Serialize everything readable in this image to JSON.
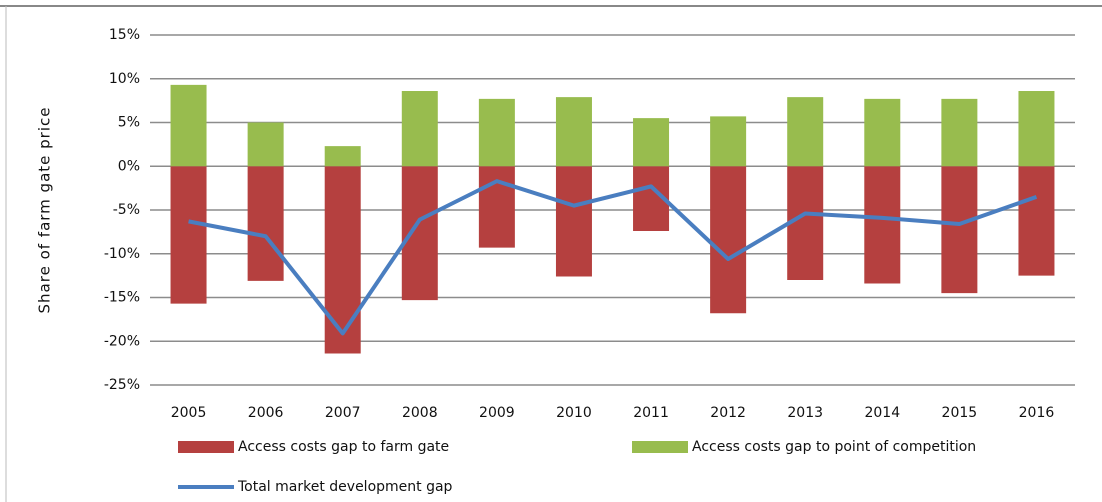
{
  "chart_data": {
    "type": "bar",
    "y_label": "Share of farm gate price",
    "categories": [
      "2005",
      "2006",
      "2007",
      "2008",
      "2009",
      "2010",
      "2011",
      "2012",
      "2013",
      "2014",
      "2015",
      "2016"
    ],
    "series": [
      {
        "name": "Access costs gap to farm gate",
        "type": "bar",
        "color": "#b5403f",
        "values": [
          -15.7,
          -13.1,
          -21.4,
          -15.3,
          -9.3,
          -12.6,
          -7.4,
          -16.8,
          -13.0,
          -13.4,
          -14.5,
          -12.5
        ]
      },
      {
        "name": "Access costs gap to point of competition",
        "type": "bar",
        "color": "#98bc4e",
        "values": [
          9.3,
          5.0,
          2.3,
          8.6,
          7.7,
          7.9,
          5.5,
          5.7,
          7.9,
          7.7,
          7.7,
          8.6
        ]
      },
      {
        "name": "Total market development gap",
        "type": "line",
        "color": "#4a7ec0",
        "values": [
          -6.3,
          -8.0,
          -19.1,
          -6.1,
          -1.7,
          -4.5,
          -2.3,
          -10.6,
          -5.4,
          -5.9,
          -6.6,
          -3.5
        ]
      }
    ],
    "ylim": [
      -25,
      15
    ],
    "yticks": [
      {
        "value": -25,
        "label": "-25%"
      },
      {
        "value": -20,
        "label": "-20%"
      },
      {
        "value": -15,
        "label": "-15%"
      },
      {
        "value": -10,
        "label": "-10%"
      },
      {
        "value": -5,
        "label": "-5%"
      },
      {
        "value": 0,
        "label": "0%"
      },
      {
        "value": 5,
        "label": "5%"
      },
      {
        "value": 10,
        "label": "10%"
      },
      {
        "value": 15,
        "label": "15%"
      }
    ],
    "grid": true
  }
}
